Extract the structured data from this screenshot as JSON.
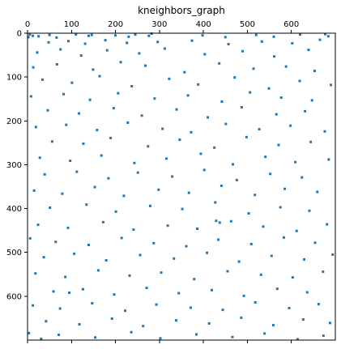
{
  "chart_data": {
    "type": "scatter",
    "title": "kneighbors_graph",
    "xlabel": "",
    "ylabel": "",
    "matrix_size": 700,
    "xlim": [
      0,
      700
    ],
    "ylim": [
      700,
      0
    ],
    "x_ticks": [
      0,
      100,
      200,
      300,
      400,
      500,
      600
    ],
    "y_ticks": [
      0,
      100,
      200,
      300,
      400,
      500,
      600
    ],
    "x_tick_labels": [
      "0",
      "100",
      "200",
      "300",
      "400",
      "500",
      "600"
    ],
    "y_tick_labels": [
      "0",
      "100",
      "200",
      "300",
      "400",
      "500",
      "600"
    ],
    "x_axis_position": "top",
    "grid": false,
    "marker_color": "#1f77b4",
    "points": [
      [
        2,
        9
      ],
      [
        5,
        3
      ],
      [
        12,
        6
      ],
      [
        25,
        7
      ],
      [
        50,
        4
      ],
      [
        66,
        10
      ],
      [
        110,
        3
      ],
      [
        139,
        6
      ],
      [
        146,
        4
      ],
      [
        200,
        5
      ],
      [
        230,
        8
      ],
      [
        245,
        3
      ],
      [
        276,
        6
      ],
      [
        282,
        1
      ],
      [
        398,
        5
      ],
      [
        450,
        9
      ],
      [
        520,
        4
      ],
      [
        560,
        8
      ],
      [
        620,
        3
      ],
      [
        677,
        2
      ],
      [
        684,
        7
      ],
      [
        48,
        21
      ],
      [
        93,
        18
      ],
      [
        131,
        24
      ],
      [
        177,
        16
      ],
      [
        226,
        22
      ],
      [
        296,
        20
      ],
      [
        374,
        17
      ],
      [
        457,
        25
      ],
      [
        533,
        19
      ],
      [
        602,
        23
      ],
      [
        665,
        15
      ],
      [
        22,
        44
      ],
      [
        75,
        37
      ],
      [
        122,
        51
      ],
      [
        181,
        39
      ],
      [
        254,
        46
      ],
      [
        312,
        35
      ],
      [
        403,
        48
      ],
      [
        489,
        41
      ],
      [
        561,
        53
      ],
      [
        639,
        38
      ],
      [
        13,
        78
      ],
      [
        67,
        71
      ],
      [
        149,
        83
      ],
      [
        212,
        66
      ],
      [
        268,
        74
      ],
      [
        357,
        89
      ],
      [
        436,
        69
      ],
      [
        514,
        81
      ],
      [
        588,
        76
      ],
      [
        653,
        86
      ],
      [
        34,
        106
      ],
      [
        101,
        113
      ],
      [
        164,
        98
      ],
      [
        237,
        121
      ],
      [
        322,
        104
      ],
      [
        388,
        117
      ],
      [
        471,
        101
      ],
      [
        549,
        126
      ],
      [
        619,
        109
      ],
      [
        690,
        118
      ],
      [
        8,
        144
      ],
      [
        82,
        139
      ],
      [
        142,
        152
      ],
      [
        206,
        137
      ],
      [
        289,
        149
      ],
      [
        365,
        142
      ],
      [
        442,
        156
      ],
      [
        506,
        135
      ],
      [
        577,
        147
      ],
      [
        647,
        153
      ],
      [
        46,
        176
      ],
      [
        117,
        183
      ],
      [
        196,
        171
      ],
      [
        260,
        188
      ],
      [
        339,
        174
      ],
      [
        410,
        192
      ],
      [
        487,
        169
      ],
      [
        566,
        185
      ],
      [
        631,
        178
      ],
      [
        19,
        214
      ],
      [
        88,
        209
      ],
      [
        158,
        221
      ],
      [
        228,
        204
      ],
      [
        307,
        218
      ],
      [
        372,
        226
      ],
      [
        451,
        207
      ],
      [
        527,
        219
      ],
      [
        598,
        211
      ],
      [
        676,
        224
      ],
      [
        56,
        247
      ],
      [
        127,
        252
      ],
      [
        189,
        239
      ],
      [
        274,
        258
      ],
      [
        346,
        243
      ],
      [
        425,
        261
      ],
      [
        498,
        237
      ],
      [
        571,
        255
      ],
      [
        644,
        248
      ],
      [
        28,
        284
      ],
      [
        97,
        291
      ],
      [
        168,
        279
      ],
      [
        243,
        296
      ],
      [
        316,
        286
      ],
      [
        394,
        275
      ],
      [
        467,
        299
      ],
      [
        541,
        282
      ],
      [
        609,
        294
      ],
      [
        685,
        288
      ],
      [
        39,
        322
      ],
      [
        112,
        316
      ],
      [
        184,
        331
      ],
      [
        251,
        318
      ],
      [
        329,
        327
      ],
      [
        402,
        312
      ],
      [
        476,
        335
      ],
      [
        552,
        321
      ],
      [
        624,
        329
      ],
      [
        15,
        359
      ],
      [
        79,
        366
      ],
      [
        153,
        351
      ],
      [
        219,
        371
      ],
      [
        298,
        357
      ],
      [
        367,
        364
      ],
      [
        441,
        348
      ],
      [
        517,
        369
      ],
      [
        585,
        355
      ],
      [
        659,
        362
      ],
      [
        51,
        398
      ],
      [
        134,
        391
      ],
      [
        201,
        407
      ],
      [
        279,
        394
      ],
      [
        352,
        401
      ],
      [
        427,
        386
      ],
      [
        429,
        428
      ],
      [
        437,
        432
      ],
      [
        503,
        411
      ],
      [
        575,
        397
      ],
      [
        641,
        405
      ],
      [
        24,
        437
      ],
      [
        92,
        444
      ],
      [
        172,
        431
      ],
      [
        241,
        448
      ],
      [
        319,
        439
      ],
      [
        386,
        446
      ],
      [
        463,
        429
      ],
      [
        536,
        441
      ],
      [
        612,
        451
      ],
      [
        681,
        436
      ],
      [
        6,
        468
      ],
      [
        64,
        476
      ],
      [
        139,
        483
      ],
      [
        214,
        467
      ],
      [
        287,
        479
      ],
      [
        361,
        486
      ],
      [
        434,
        471
      ],
      [
        509,
        481
      ],
      [
        583,
        466
      ],
      [
        654,
        478
      ],
      [
        37,
        511
      ],
      [
        106,
        503
      ],
      [
        179,
        518
      ],
      [
        256,
        506
      ],
      [
        333,
        514
      ],
      [
        408,
        501
      ],
      [
        481,
        521
      ],
      [
        555,
        508
      ],
      [
        629,
        516
      ],
      [
        694,
        505
      ],
      [
        18,
        548
      ],
      [
        86,
        556
      ],
      [
        161,
        541
      ],
      [
        232,
        553
      ],
      [
        304,
        546
      ],
      [
        379,
        561
      ],
      [
        455,
        543
      ],
      [
        531,
        551
      ],
      [
        603,
        557
      ],
      [
        672,
        544
      ],
      [
        59,
        589
      ],
      [
        95,
        592
      ],
      [
        126,
        584
      ],
      [
        197,
        596
      ],
      [
        271,
        581
      ],
      [
        344,
        593
      ],
      [
        419,
        586
      ],
      [
        492,
        599
      ],
      [
        568,
        583
      ],
      [
        636,
        591
      ],
      [
        12,
        621
      ],
      [
        74,
        628
      ],
      [
        147,
        616
      ],
      [
        222,
        633
      ],
      [
        293,
        619
      ],
      [
        371,
        626
      ],
      [
        444,
        631
      ],
      [
        518,
        614
      ],
      [
        595,
        627
      ],
      [
        662,
        618
      ],
      [
        42,
        657
      ],
      [
        118,
        664
      ],
      [
        192,
        651
      ],
      [
        263,
        668
      ],
      [
        338,
        655
      ],
      [
        413,
        662
      ],
      [
        486,
        649
      ],
      [
        559,
        666
      ],
      [
        627,
        653
      ],
      [
        688,
        661
      ],
      [
        3,
        684
      ],
      [
        31,
        697
      ],
      [
        71,
        688
      ],
      [
        154,
        694
      ],
      [
        236,
        682
      ],
      [
        302,
        696
      ],
      [
        384,
        687
      ],
      [
        466,
        693
      ],
      [
        539,
        685
      ],
      [
        614,
        698
      ],
      [
        673,
        690
      ]
    ]
  }
}
